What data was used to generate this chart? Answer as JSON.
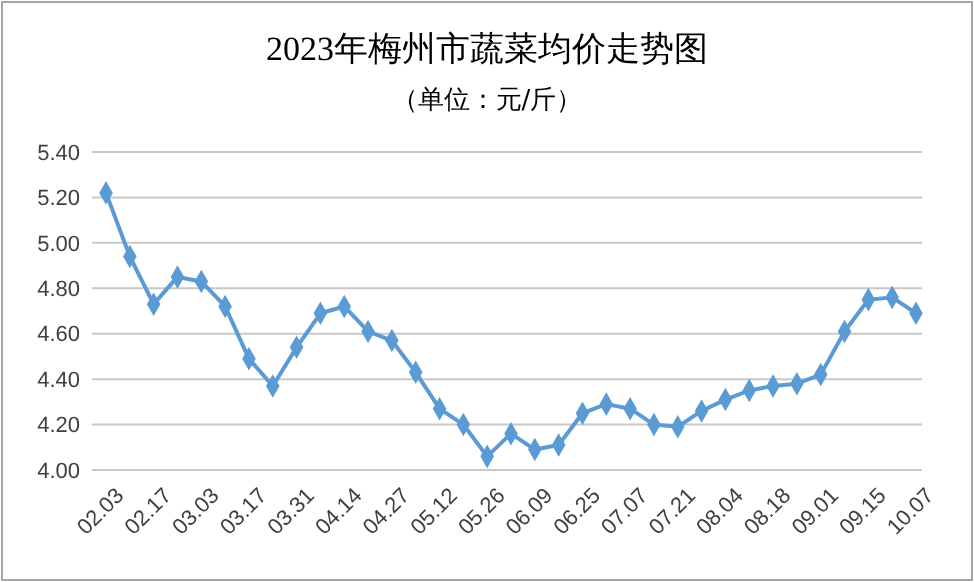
{
  "chart_data": {
    "type": "line",
    "title": "2023年梅州市蔬菜均价走势图",
    "subtitle": "（单位：元/斤）",
    "categories": [
      "02.03",
      null,
      "02.17",
      null,
      "03.03",
      null,
      "03.17",
      null,
      "03.31",
      null,
      "04.14",
      null,
      "04.27",
      null,
      "05.12",
      null,
      "05.26",
      null,
      "06.09",
      null,
      "06.25",
      null,
      "07.07",
      null,
      "07.21",
      null,
      "08.04",
      null,
      "08.18",
      null,
      "09.01",
      null,
      "09.15",
      null,
      "10.07"
    ],
    "series": [
      {
        "color": "#5b9bd5",
        "values": [
          5.22,
          4.94,
          4.73,
          4.85,
          4.83,
          4.72,
          4.49,
          4.37,
          4.54,
          4.69,
          4.72,
          4.61,
          4.57,
          4.43,
          4.27,
          4.2,
          4.06,
          4.16,
          4.09,
          4.11,
          4.25,
          4.29,
          4.27,
          4.2,
          4.19,
          4.26,
          4.31,
          4.35,
          4.37,
          4.38,
          4.42,
          4.61,
          4.75,
          4.76,
          4.69
        ]
      }
    ],
    "ylim": [
      4.0,
      5.4
    ],
    "yticks": [
      {
        "value": 4.0,
        "label": "4.00"
      },
      {
        "value": 4.2,
        "label": "4.20"
      },
      {
        "value": 4.4,
        "label": "4.40"
      },
      {
        "value": 4.6,
        "label": "4.60"
      },
      {
        "value": 4.8,
        "label": "4.80"
      },
      {
        "value": 5.0,
        "label": "5.00"
      },
      {
        "value": 5.2,
        "label": "5.20"
      },
      {
        "value": 5.4,
        "label": "5.40"
      }
    ],
    "grid": "y",
    "marker": "diamond",
    "line_style": "solid"
  }
}
